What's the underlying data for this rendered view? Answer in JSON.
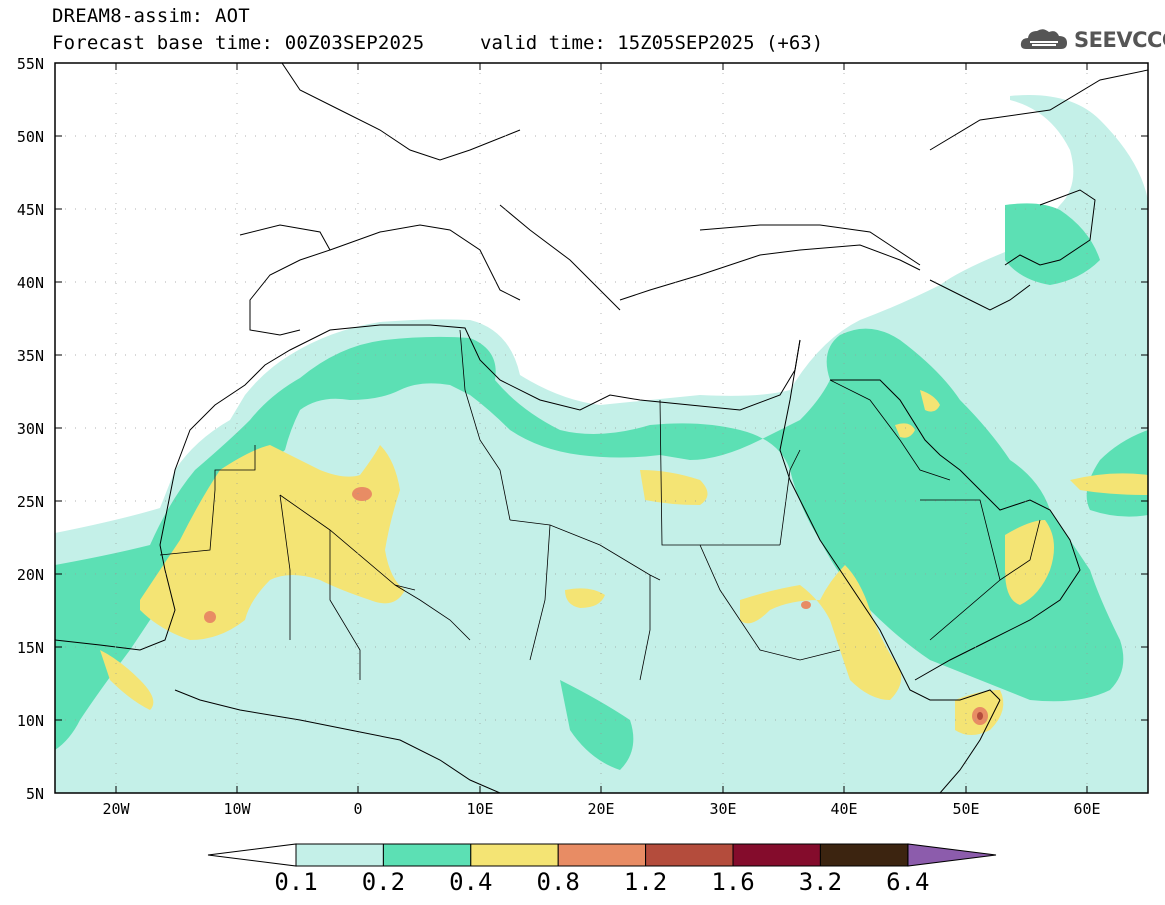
{
  "header": {
    "title": "DREAM8-assim: AOT",
    "base_time": "Forecast base time: 00Z03SEP2025",
    "valid_time": "valid time: 15Z05SEP2025 (+63)"
  },
  "logo": {
    "text": "SEEVCCC",
    "icon": "cloud-icon"
  },
  "map": {
    "lat_labels": [
      "55N",
      "50N",
      "45N",
      "40N",
      "35N",
      "30N",
      "25N",
      "20N",
      "15N",
      "10N",
      "5N"
    ],
    "lon_labels": [
      "20W",
      "10W",
      "0",
      "10E",
      "20E",
      "30E",
      "40E",
      "50E",
      "60E"
    ],
    "lon_range": [
      -25,
      65
    ],
    "lat_range": [
      5,
      55
    ]
  },
  "colorbar": {
    "thresholds": [
      "0.1",
      "0.2",
      "0.4",
      "0.8",
      "1.2",
      "1.6",
      "3.2",
      "6.4"
    ],
    "colors": [
      "#c4f0e8",
      "#5ce0b4",
      "#f4e474",
      "#e88c64",
      "#b44c3c",
      "#840c2c",
      "#3c2410",
      "#8c5cac"
    ]
  }
}
